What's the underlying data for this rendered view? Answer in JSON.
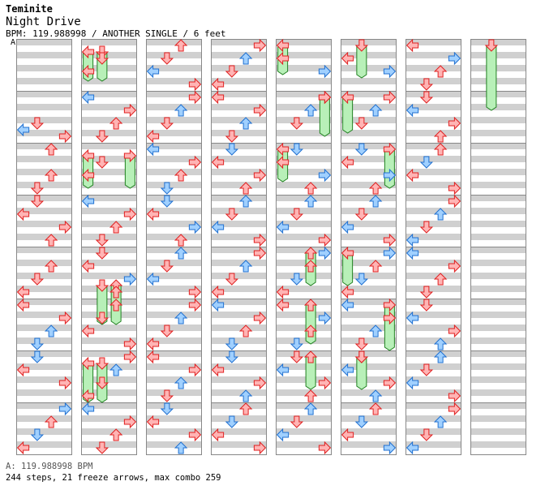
{
  "header": {
    "artist": "Teminite",
    "title": "Night Drive",
    "info": "BPM: 119.988998 / ANOTHER SINGLE / 6 feet",
    "bpm_marker": "A"
  },
  "footer": {
    "bpm_line": "A: 119.988998 BPM",
    "stats_line": "244 steps, 21 freeze arrows, max combo 259"
  },
  "colors": {
    "stripe": "#d0d0d0",
    "border": "#888888",
    "red_fill": "#ffb4b4",
    "red_stroke": "#e02020",
    "blue_fill": "#a0d0ff",
    "blue_stroke": "#2070d0",
    "freeze_fill": "#b8f0b8",
    "freeze_stroke": "#208020"
  },
  "chart_data": {
    "type": "step-chart",
    "columns": 8,
    "measures_per_column": 8,
    "lanes": [
      "left",
      "down",
      "up",
      "right"
    ],
    "notes": [
      [
        0,
        1,
        8,
        "red"
      ],
      [
        0,
        1,
        10,
        "blue"
      ],
      [
        0,
        1,
        12,
        "red"
      ],
      [
        0,
        1,
        16,
        "red"
      ],
      [
        0,
        2,
        8,
        "red"
      ],
      [
        0,
        2,
        12,
        "red"
      ],
      [
        0,
        3,
        0,
        "red"
      ],
      [
        0,
        3,
        4,
        "red"
      ],
      [
        0,
        3,
        8,
        "red"
      ],
      [
        0,
        3,
        12,
        "red"
      ],
      [
        0,
        4,
        4,
        "red"
      ],
      [
        0,
        4,
        8,
        "red"
      ],
      [
        0,
        4,
        12,
        "red"
      ],
      [
        0,
        5,
        0,
        "red"
      ],
      [
        0,
        5,
        4,
        "red"
      ],
      [
        0,
        5,
        8,
        "blue"
      ],
      [
        0,
        5,
        12,
        "blue"
      ],
      [
        0,
        6,
        0,
        "blue"
      ],
      [
        0,
        6,
        4,
        "red"
      ],
      [
        0,
        6,
        8,
        "red"
      ],
      [
        0,
        7,
        0,
        "blue"
      ],
      [
        0,
        7,
        4,
        "red"
      ],
      [
        0,
        7,
        8,
        "blue"
      ],
      [
        0,
        7,
        12,
        "red"
      ],
      [
        1,
        0,
        4,
        "red"
      ],
      [
        1,
        0,
        8,
        "red"
      ],
      [
        1,
        1,
        0,
        "blue"
      ],
      [
        1,
        1,
        4,
        "red"
      ],
      [
        1,
        1,
        8,
        "red"
      ],
      [
        1,
        1,
        12,
        "red"
      ],
      [
        1,
        2,
        4,
        "red"
      ],
      [
        1,
        2,
        8,
        "red"
      ],
      [
        1,
        3,
        0,
        "blue"
      ],
      [
        1,
        3,
        4,
        "red"
      ],
      [
        1,
        3,
        8,
        "red"
      ],
      [
        1,
        3,
        12,
        "red"
      ],
      [
        1,
        4,
        0,
        "red"
      ],
      [
        1,
        4,
        4,
        "red"
      ],
      [
        1,
        4,
        8,
        "blue"
      ],
      [
        1,
        4,
        12,
        "red"
      ],
      [
        1,
        5,
        0,
        "red"
      ],
      [
        1,
        5,
        4,
        "red"
      ],
      [
        1,
        5,
        8,
        "red"
      ],
      [
        1,
        5,
        12,
        "red"
      ],
      [
        1,
        6,
        0,
        "red"
      ],
      [
        1,
        6,
        4,
        "blue"
      ],
      [
        1,
        6,
        8,
        "red"
      ],
      [
        1,
        6,
        12,
        "red"
      ],
      [
        1,
        7,
        0,
        "blue"
      ],
      [
        1,
        7,
        4,
        "red"
      ],
      [
        1,
        7,
        8,
        "red"
      ],
      [
        1,
        7,
        12,
        "red"
      ],
      [
        2,
        0,
        0,
        "red"
      ],
      [
        2,
        0,
        4,
        "red"
      ],
      [
        2,
        0,
        8,
        "blue"
      ],
      [
        2,
        0,
        12,
        "red"
      ],
      [
        2,
        1,
        0,
        "red"
      ],
      [
        2,
        1,
        4,
        "blue"
      ],
      [
        2,
        1,
        8,
        "red"
      ],
      [
        2,
        1,
        12,
        "red"
      ],
      [
        2,
        2,
        0,
        "blue"
      ],
      [
        2,
        2,
        4,
        "red"
      ],
      [
        2,
        2,
        8,
        "red"
      ],
      [
        2,
        2,
        12,
        "blue"
      ],
      [
        2,
        3,
        0,
        "blue"
      ],
      [
        2,
        3,
        4,
        "red"
      ],
      [
        2,
        3,
        8,
        "blue"
      ],
      [
        2,
        3,
        12,
        "red"
      ],
      [
        2,
        4,
        0,
        "blue"
      ],
      [
        2,
        4,
        4,
        "red"
      ],
      [
        2,
        4,
        8,
        "blue"
      ],
      [
        2,
        4,
        12,
        "red"
      ],
      [
        2,
        5,
        0,
        "red"
      ],
      [
        2,
        5,
        4,
        "blue"
      ],
      [
        2,
        5,
        8,
        "red"
      ],
      [
        2,
        5,
        12,
        "red"
      ],
      [
        2,
        6,
        0,
        "red"
      ],
      [
        2,
        6,
        4,
        "red"
      ],
      [
        2,
        6,
        8,
        "blue"
      ],
      [
        2,
        6,
        12,
        "red"
      ],
      [
        2,
        7,
        0,
        "blue"
      ],
      [
        2,
        7,
        4,
        "red"
      ],
      [
        2,
        7,
        8,
        "red"
      ],
      [
        2,
        7,
        12,
        "blue"
      ],
      [
        3,
        0,
        0,
        "red"
      ],
      [
        3,
        0,
        4,
        "blue"
      ],
      [
        3,
        0,
        8,
        "red"
      ],
      [
        3,
        0,
        12,
        "red"
      ],
      [
        3,
        1,
        0,
        "red"
      ],
      [
        3,
        1,
        4,
        "red"
      ],
      [
        3,
        1,
        8,
        "blue"
      ],
      [
        3,
        1,
        12,
        "red"
      ],
      [
        3,
        2,
        0,
        "blue"
      ],
      [
        3,
        2,
        4,
        "red"
      ],
      [
        3,
        2,
        8,
        "red"
      ],
      [
        3,
        2,
        12,
        "red"
      ],
      [
        3,
        3,
        0,
        "blue"
      ],
      [
        3,
        3,
        4,
        "red"
      ],
      [
        3,
        3,
        8,
        "blue"
      ],
      [
        3,
        3,
        12,
        "red"
      ],
      [
        3,
        4,
        0,
        "red"
      ],
      [
        3,
        4,
        4,
        "blue"
      ],
      [
        3,
        4,
        8,
        "red"
      ],
      [
        3,
        4,
        12,
        "red"
      ],
      [
        3,
        5,
        0,
        "blue"
      ],
      [
        3,
        5,
        4,
        "red"
      ],
      [
        3,
        5,
        8,
        "red"
      ],
      [
        3,
        5,
        12,
        "blue"
      ],
      [
        3,
        6,
        0,
        "blue"
      ],
      [
        3,
        6,
        4,
        "red"
      ],
      [
        3,
        6,
        8,
        "red"
      ],
      [
        3,
        6,
        12,
        "blue"
      ],
      [
        3,
        7,
        0,
        "red"
      ],
      [
        3,
        7,
        4,
        "blue"
      ],
      [
        3,
        7,
        8,
        "red"
      ],
      [
        3,
        7,
        12,
        "red"
      ],
      [
        4,
        0,
        4,
        "red"
      ],
      [
        4,
        0,
        8,
        "blue"
      ],
      [
        4,
        1,
        0,
        "red"
      ],
      [
        4,
        1,
        4,
        "blue"
      ],
      [
        4,
        1,
        8,
        "red"
      ],
      [
        4,
        2,
        0,
        "blue"
      ],
      [
        4,
        2,
        4,
        "red"
      ],
      [
        4,
        2,
        8,
        "blue"
      ],
      [
        4,
        2,
        12,
        "red"
      ],
      [
        4,
        3,
        0,
        "blue"
      ],
      [
        4,
        3,
        4,
        "red"
      ],
      [
        4,
        3,
        8,
        "blue"
      ],
      [
        4,
        3,
        12,
        "red"
      ],
      [
        4,
        4,
        0,
        "blue"
      ],
      [
        4,
        4,
        4,
        "red"
      ],
      [
        4,
        4,
        8,
        "blue"
      ],
      [
        4,
        4,
        12,
        "red"
      ],
      [
        4,
        5,
        0,
        "red"
      ],
      [
        4,
        5,
        4,
        "blue"
      ],
      [
        4,
        5,
        8,
        "red"
      ],
      [
        4,
        5,
        12,
        "blue"
      ],
      [
        4,
        6,
        0,
        "red"
      ],
      [
        4,
        6,
        4,
        "blue"
      ],
      [
        4,
        6,
        8,
        "red"
      ],
      [
        4,
        6,
        12,
        "red"
      ],
      [
        4,
        7,
        0,
        "blue"
      ],
      [
        4,
        7,
        4,
        "red"
      ],
      [
        4,
        7,
        8,
        "blue"
      ],
      [
        4,
        7,
        12,
        "red"
      ],
      [
        5,
        0,
        4,
        "red"
      ],
      [
        5,
        0,
        8,
        "blue"
      ],
      [
        5,
        1,
        0,
        "red"
      ],
      [
        5,
        1,
        4,
        "blue"
      ],
      [
        5,
        1,
        8,
        "red"
      ],
      [
        5,
        2,
        0,
        "blue"
      ],
      [
        5,
        2,
        4,
        "red"
      ],
      [
        5,
        2,
        8,
        "blue"
      ],
      [
        5,
        2,
        12,
        "red"
      ],
      [
        5,
        3,
        0,
        "blue"
      ],
      [
        5,
        3,
        4,
        "red"
      ],
      [
        5,
        3,
        8,
        "blue"
      ],
      [
        5,
        3,
        12,
        "red"
      ],
      [
        5,
        4,
        0,
        "blue"
      ],
      [
        5,
        4,
        4,
        "red"
      ],
      [
        5,
        4,
        8,
        "blue"
      ],
      [
        5,
        4,
        12,
        "red"
      ],
      [
        5,
        5,
        0,
        "blue"
      ],
      [
        5,
        5,
        4,
        "red"
      ],
      [
        5,
        5,
        8,
        "blue"
      ],
      [
        5,
        5,
        12,
        "red"
      ],
      [
        5,
        6,
        0,
        "red"
      ],
      [
        5,
        6,
        4,
        "blue"
      ],
      [
        5,
        6,
        8,
        "red"
      ],
      [
        5,
        6,
        12,
        "blue"
      ],
      [
        5,
        7,
        0,
        "red"
      ],
      [
        5,
        7,
        4,
        "blue"
      ],
      [
        5,
        7,
        8,
        "red"
      ],
      [
        5,
        7,
        12,
        "blue"
      ],
      [
        6,
        0,
        0,
        "red"
      ],
      [
        6,
        0,
        4,
        "blue"
      ],
      [
        6,
        0,
        8,
        "red"
      ],
      [
        6,
        0,
        12,
        "red"
      ],
      [
        6,
        1,
        0,
        "red"
      ],
      [
        6,
        1,
        4,
        "blue"
      ],
      [
        6,
        1,
        8,
        "red"
      ],
      [
        6,
        1,
        12,
        "red"
      ],
      [
        6,
        2,
        0,
        "red"
      ],
      [
        6,
        2,
        4,
        "blue"
      ],
      [
        6,
        2,
        8,
        "red"
      ],
      [
        6,
        2,
        12,
        "red"
      ],
      [
        6,
        3,
        0,
        "red"
      ],
      [
        6,
        3,
        4,
        "blue"
      ],
      [
        6,
        3,
        8,
        "red"
      ],
      [
        6,
        3,
        12,
        "blue"
      ],
      [
        6,
        4,
        0,
        "blue"
      ],
      [
        6,
        4,
        4,
        "red"
      ],
      [
        6,
        4,
        8,
        "red"
      ],
      [
        6,
        4,
        12,
        "red"
      ],
      [
        6,
        5,
        0,
        "red"
      ],
      [
        6,
        5,
        4,
        "blue"
      ],
      [
        6,
        5,
        8,
        "red"
      ],
      [
        6,
        5,
        12,
        "blue"
      ],
      [
        6,
        6,
        0,
        "blue"
      ],
      [
        6,
        6,
        4,
        "red"
      ],
      [
        6,
        6,
        8,
        "blue"
      ],
      [
        6,
        6,
        12,
        "red"
      ],
      [
        6,
        7,
        0,
        "red"
      ],
      [
        6,
        7,
        4,
        "blue"
      ],
      [
        6,
        7,
        8,
        "red"
      ],
      [
        6,
        7,
        12,
        "blue"
      ]
    ],
    "freezes": [
      [
        1,
        0,
        2,
        0,
        5,
        0
      ],
      [
        1,
        0,
        2,
        0,
        5,
        1
      ],
      [
        1,
        2,
        2,
        0,
        6,
        0
      ],
      [
        1,
        2,
        2,
        0,
        6,
        3
      ],
      [
        1,
        4,
        10,
        0,
        8,
        1
      ],
      [
        1,
        4,
        10,
        0,
        8,
        2
      ],
      [
        1,
        6,
        2,
        0,
        8,
        0
      ],
      [
        1,
        6,
        2,
        0,
        8,
        1
      ],
      [
        4,
        0,
        0,
        0,
        5,
        0
      ],
      [
        4,
        1,
        0,
        0,
        8,
        3
      ],
      [
        4,
        2,
        0,
        0,
        6,
        0
      ],
      [
        4,
        4,
        0,
        0,
        6,
        2
      ],
      [
        4,
        5,
        0,
        0,
        8,
        2
      ],
      [
        4,
        6,
        0,
        0,
        6,
        2
      ],
      [
        5,
        0,
        0,
        0,
        6,
        1
      ],
      [
        5,
        1,
        0,
        0,
        7,
        0
      ],
      [
        5,
        2,
        0,
        0,
        8,
        3
      ],
      [
        5,
        4,
        0,
        0,
        6,
        0
      ],
      [
        5,
        5,
        0,
        0,
        10,
        3
      ],
      [
        5,
        6,
        0,
        0,
        6,
        1
      ],
      [
        7,
        0,
        0,
        0,
        16,
        1
      ]
    ]
  }
}
